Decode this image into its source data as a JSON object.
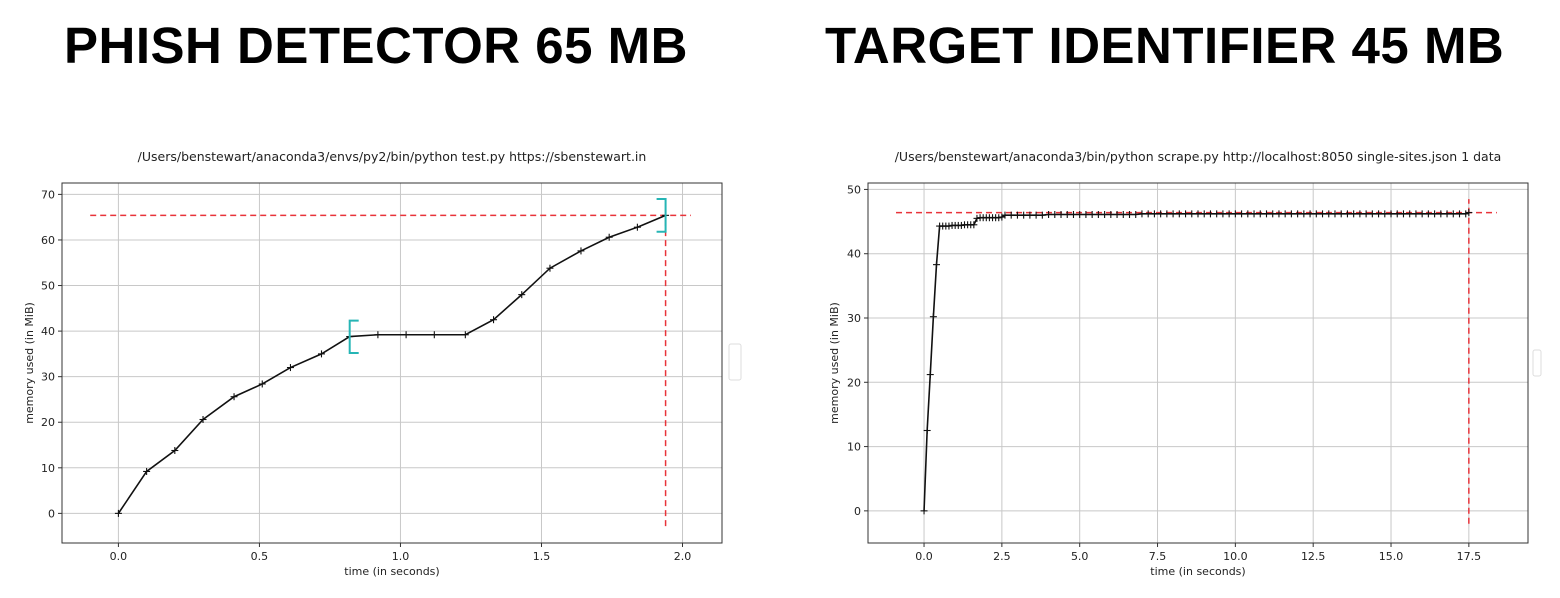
{
  "headlines": {
    "left": "PHISH DETECTOR 65 MB",
    "right": "TARGET IDENTIFIER 45 MB"
  },
  "colors": {
    "series": "#111111",
    "max_line": "#e8333a",
    "bracket": "#26b5b5",
    "grid": "#c8c8c8"
  },
  "chart_data": [
    {
      "type": "line",
      "title": "/Users/benstewart/anaconda3/envs/py2/bin/python test.py https://sbenstewart.in",
      "xlabel": "time (in seconds)",
      "ylabel": "memory used (in MiB)",
      "xlim": [
        -0.2,
        2.14
      ],
      "ylim": [
        -6.5,
        72.5
      ],
      "xticks": [
        0.0,
        0.5,
        1.0,
        1.5,
        2.0
      ],
      "xtick_labels": [
        "0.0",
        "0.5",
        "1.0",
        "1.5",
        "2.0"
      ],
      "yticks": [
        0,
        10,
        20,
        30,
        40,
        50,
        60,
        70
      ],
      "ytick_labels": [
        "0",
        "10",
        "20",
        "30",
        "40",
        "50",
        "60",
        "70"
      ],
      "grid": true,
      "series": [
        {
          "x": [
            0.0,
            0.1,
            0.2,
            0.3,
            0.41,
            0.51,
            0.61,
            0.72,
            0.82,
            0.92,
            1.02,
            1.12,
            1.23,
            1.33,
            1.43,
            1.53,
            1.64,
            1.74,
            1.84,
            1.94
          ],
          "y": [
            0.0,
            9.2,
            13.8,
            20.6,
            25.6,
            28.4,
            32.0,
            35.0,
            38.8,
            39.2,
            39.2,
            39.2,
            39.2,
            42.5,
            48.0,
            53.8,
            57.6,
            60.6,
            62.8,
            65.4
          ]
        }
      ],
      "max_memory": 65.4,
      "max_time": 1.94,
      "max_line_x_range": [
        -0.1,
        2.03
      ],
      "max_line_y_range": [
        -2.8,
        65.4
      ],
      "brackets": [
        {
          "x": 0.82,
          "y_range": [
            35.2,
            42.3
          ],
          "side": "left"
        },
        {
          "x": 1.94,
          "y_range": [
            61.8,
            69.0
          ],
          "side": "right"
        }
      ]
    },
    {
      "type": "line",
      "title": "/Users/benstewart/anaconda3/bin/python scrape.py http://localhost:8050 single-sites.json 1 data",
      "xlabel": "time (in seconds)",
      "ylabel": "memory used (in MiB)",
      "xlim": [
        -1.8,
        19.4
      ],
      "ylim": [
        -5,
        51
      ],
      "xticks": [
        0.0,
        2.5,
        5.0,
        7.5,
        10.0,
        12.5,
        15.0,
        17.5
      ],
      "xtick_labels": [
        "0.0",
        "2.5",
        "5.0",
        "7.5",
        "10.0",
        "12.5",
        "15.0",
        "17.5"
      ],
      "yticks": [
        0,
        10,
        20,
        30,
        40,
        50
      ],
      "ytick_labels": [
        "0",
        "10",
        "20",
        "30",
        "40",
        "50"
      ],
      "grid": true,
      "series": [
        {
          "x": [
            0.0,
            0.1,
            0.2,
            0.3,
            0.4,
            0.5,
            0.6,
            0.7,
            0.8,
            0.9,
            1.0,
            1.1,
            1.2,
            1.3,
            1.4,
            1.5,
            1.6,
            1.7,
            1.8,
            1.9,
            2.0,
            2.1,
            2.2,
            2.3,
            2.4,
            2.5,
            2.6,
            2.8,
            3.0,
            3.2,
            3.4,
            3.6,
            3.8,
            4.0,
            4.2,
            4.4,
            4.6,
            4.8,
            5.0,
            5.2,
            5.4,
            5.6,
            5.8,
            6.0,
            6.2,
            6.4,
            6.6,
            6.8,
            7.0,
            7.2,
            7.4,
            7.6,
            7.8,
            8.0,
            8.2,
            8.4,
            8.6,
            8.8,
            9.0,
            9.2,
            9.4,
            9.6,
            9.8,
            10.0,
            10.2,
            10.4,
            10.6,
            10.8,
            11.0,
            11.2,
            11.4,
            11.6,
            11.8,
            12.0,
            12.2,
            12.4,
            12.6,
            12.8,
            13.0,
            13.2,
            13.4,
            13.6,
            13.8,
            14.0,
            14.2,
            14.4,
            14.6,
            14.8,
            15.0,
            15.2,
            15.4,
            15.6,
            15.8,
            16.0,
            16.2,
            16.4,
            16.6,
            16.8,
            17.0,
            17.2,
            17.4,
            17.5
          ],
          "y": [
            0.0,
            12.5,
            21.2,
            30.2,
            38.3,
            44.3,
            44.3,
            44.3,
            44.3,
            44.4,
            44.4,
            44.4,
            44.4,
            44.5,
            44.5,
            44.5,
            44.5,
            45.5,
            45.6,
            45.6,
            45.6,
            45.6,
            45.6,
            45.6,
            45.6,
            45.7,
            46.0,
            46.0,
            46.0,
            46.0,
            46.0,
            46.0,
            46.0,
            46.1,
            46.1,
            46.1,
            46.1,
            46.1,
            46.1,
            46.1,
            46.1,
            46.1,
            46.1,
            46.1,
            46.1,
            46.1,
            46.1,
            46.1,
            46.2,
            46.2,
            46.2,
            46.2,
            46.2,
            46.2,
            46.2,
            46.2,
            46.2,
            46.2,
            46.2,
            46.2,
            46.2,
            46.2,
            46.2,
            46.2,
            46.2,
            46.2,
            46.2,
            46.2,
            46.2,
            46.2,
            46.2,
            46.2,
            46.2,
            46.2,
            46.2,
            46.2,
            46.2,
            46.2,
            46.2,
            46.2,
            46.2,
            46.2,
            46.2,
            46.2,
            46.2,
            46.2,
            46.2,
            46.2,
            46.2,
            46.2,
            46.2,
            46.2,
            46.2,
            46.2,
            46.2,
            46.2,
            46.2,
            46.2,
            46.2,
            46.2,
            46.2,
            46.4
          ]
        }
      ],
      "max_memory": 46.4,
      "max_time": 17.5,
      "max_line_x_range": [
        -0.9,
        18.4
      ],
      "max_line_y_range": [
        -2.0,
        48.5
      ]
    }
  ]
}
